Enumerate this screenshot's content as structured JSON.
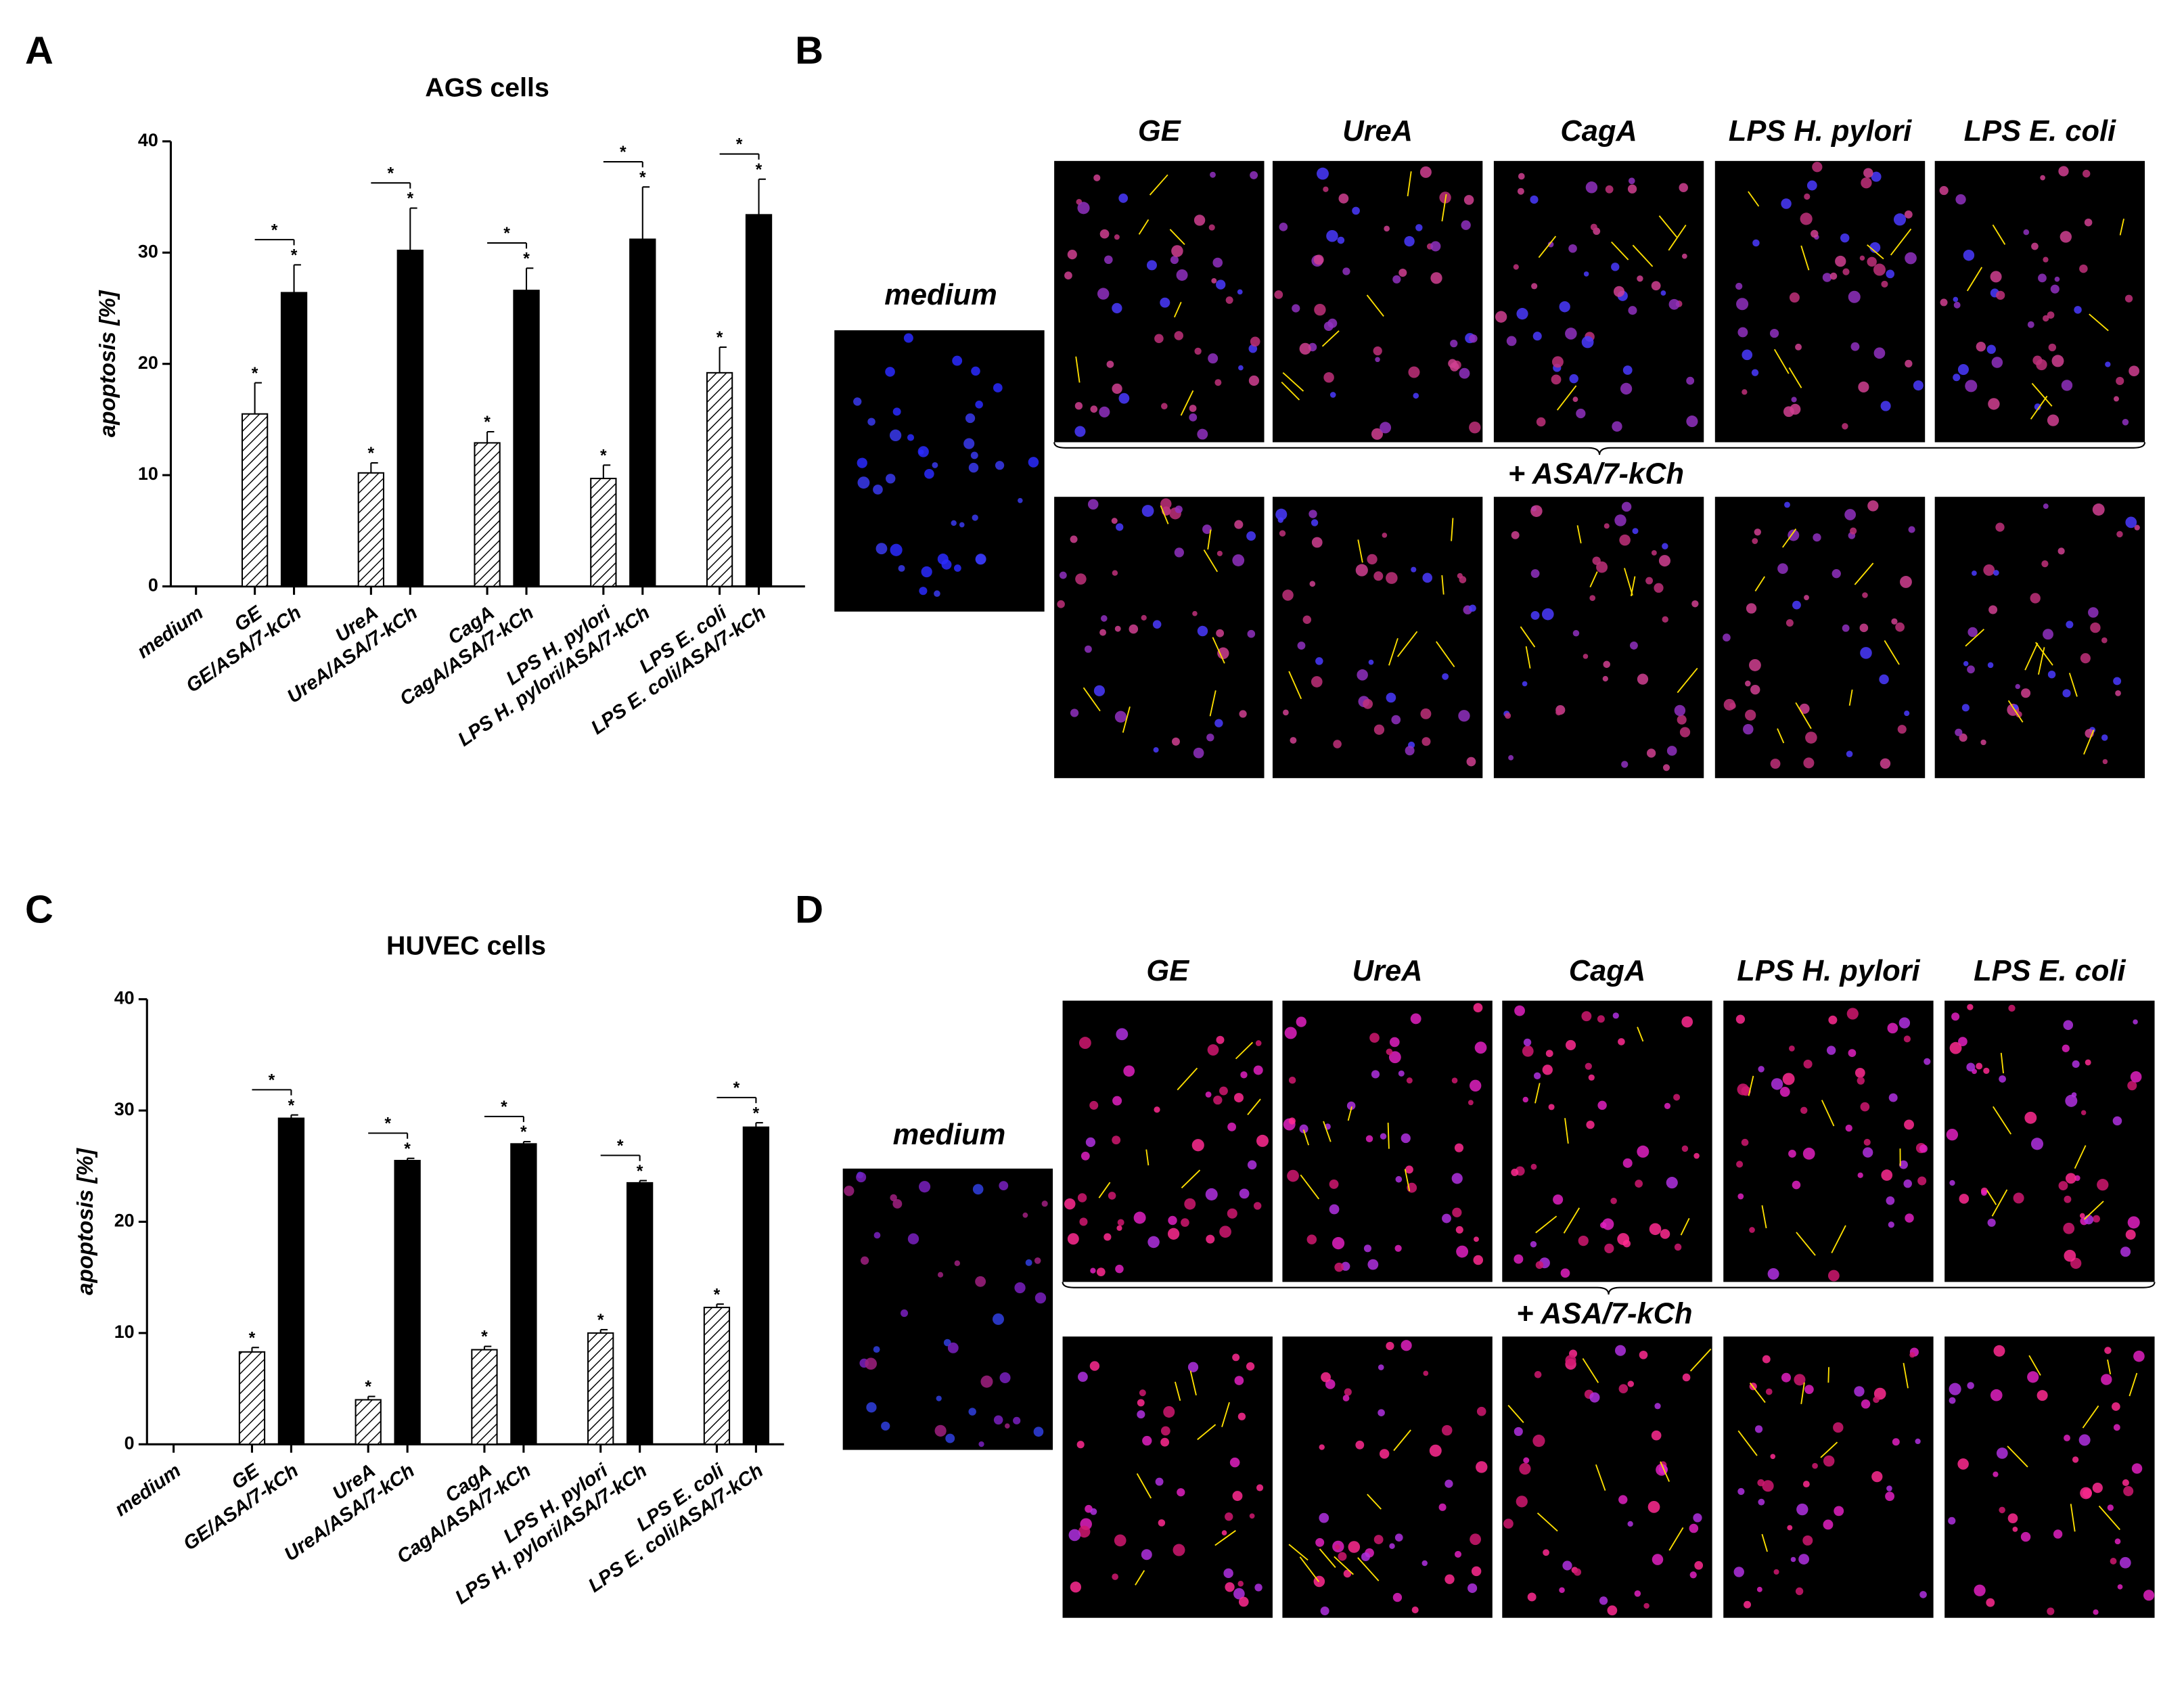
{
  "panel_labels": [
    "A",
    "B",
    "C",
    "D"
  ],
  "chart_data": [
    {
      "type": "bar",
      "title": "AGS cells",
      "y_label": "apoptosis [%]",
      "categories": [
        "medium",
        "GE",
        "GE/ASA/7-kCh",
        "UreA",
        "UreA/ASA/7-kCh",
        "CagA",
        "CagA/ASA/7-kCh",
        "LPS H. pylori",
        "LPS H. pylori/ASA/7-kCh",
        "LPS E. coli",
        "LPS E. coli/ASA/7-kCh"
      ],
      "values": [
        0,
        15.5,
        26.4,
        10.2,
        30.2,
        12.9,
        26.6,
        9.7,
        31.2,
        19.2,
        33.4
      ],
      "errors": [
        0,
        2.8,
        2.5,
        0.9,
        3.8,
        1.0,
        2.0,
        1.2,
        4.7,
        2.3,
        3.2
      ],
      "ylim": [
        0,
        40
      ],
      "yticks": [
        0,
        10,
        20,
        30,
        40
      ],
      "significance_mark": "*"
    },
    {
      "type": "bar",
      "title": "HUVEC cells",
      "y_label": "apoptosis [%]",
      "categories": [
        "medium",
        "GE",
        "GE/ASA/7-kCh",
        "UreA",
        "UreA/ASA/7-kCh",
        "CagA",
        "CagA/ASA/7-kCh",
        "LPS H. pylori",
        "LPS H. pylori/ASA/7-kCh",
        "LPS E. coli",
        "LPS E. coli/ASA/7-kCh"
      ],
      "values": [
        0,
        8.3,
        29.3,
        4.0,
        25.5,
        8.5,
        27.0,
        10.0,
        23.5,
        12.3,
        28.5
      ],
      "errors": [
        0,
        0.4,
        0.3,
        0.3,
        0.2,
        0.3,
        0.2,
        0.3,
        0.2,
        0.3,
        0.4
      ],
      "ylim": [
        0,
        40
      ],
      "yticks": [
        0,
        10,
        20,
        30,
        40
      ],
      "significance_mark": "*"
    }
  ],
  "micrographs": [
    {
      "medium_label": "medium",
      "columns": [
        "GE",
        "UreA",
        "CagA",
        "LPS H. pylori",
        "LPS E. coli"
      ],
      "treatment_label": "+ ASA/7-kCh"
    },
    {
      "medium_label": "medium",
      "columns": [
        "GE",
        "UreA",
        "CagA",
        "LPS H. pylori",
        "LPS E. coli"
      ],
      "treatment_label": "+ ASA/7-kCh"
    }
  ]
}
